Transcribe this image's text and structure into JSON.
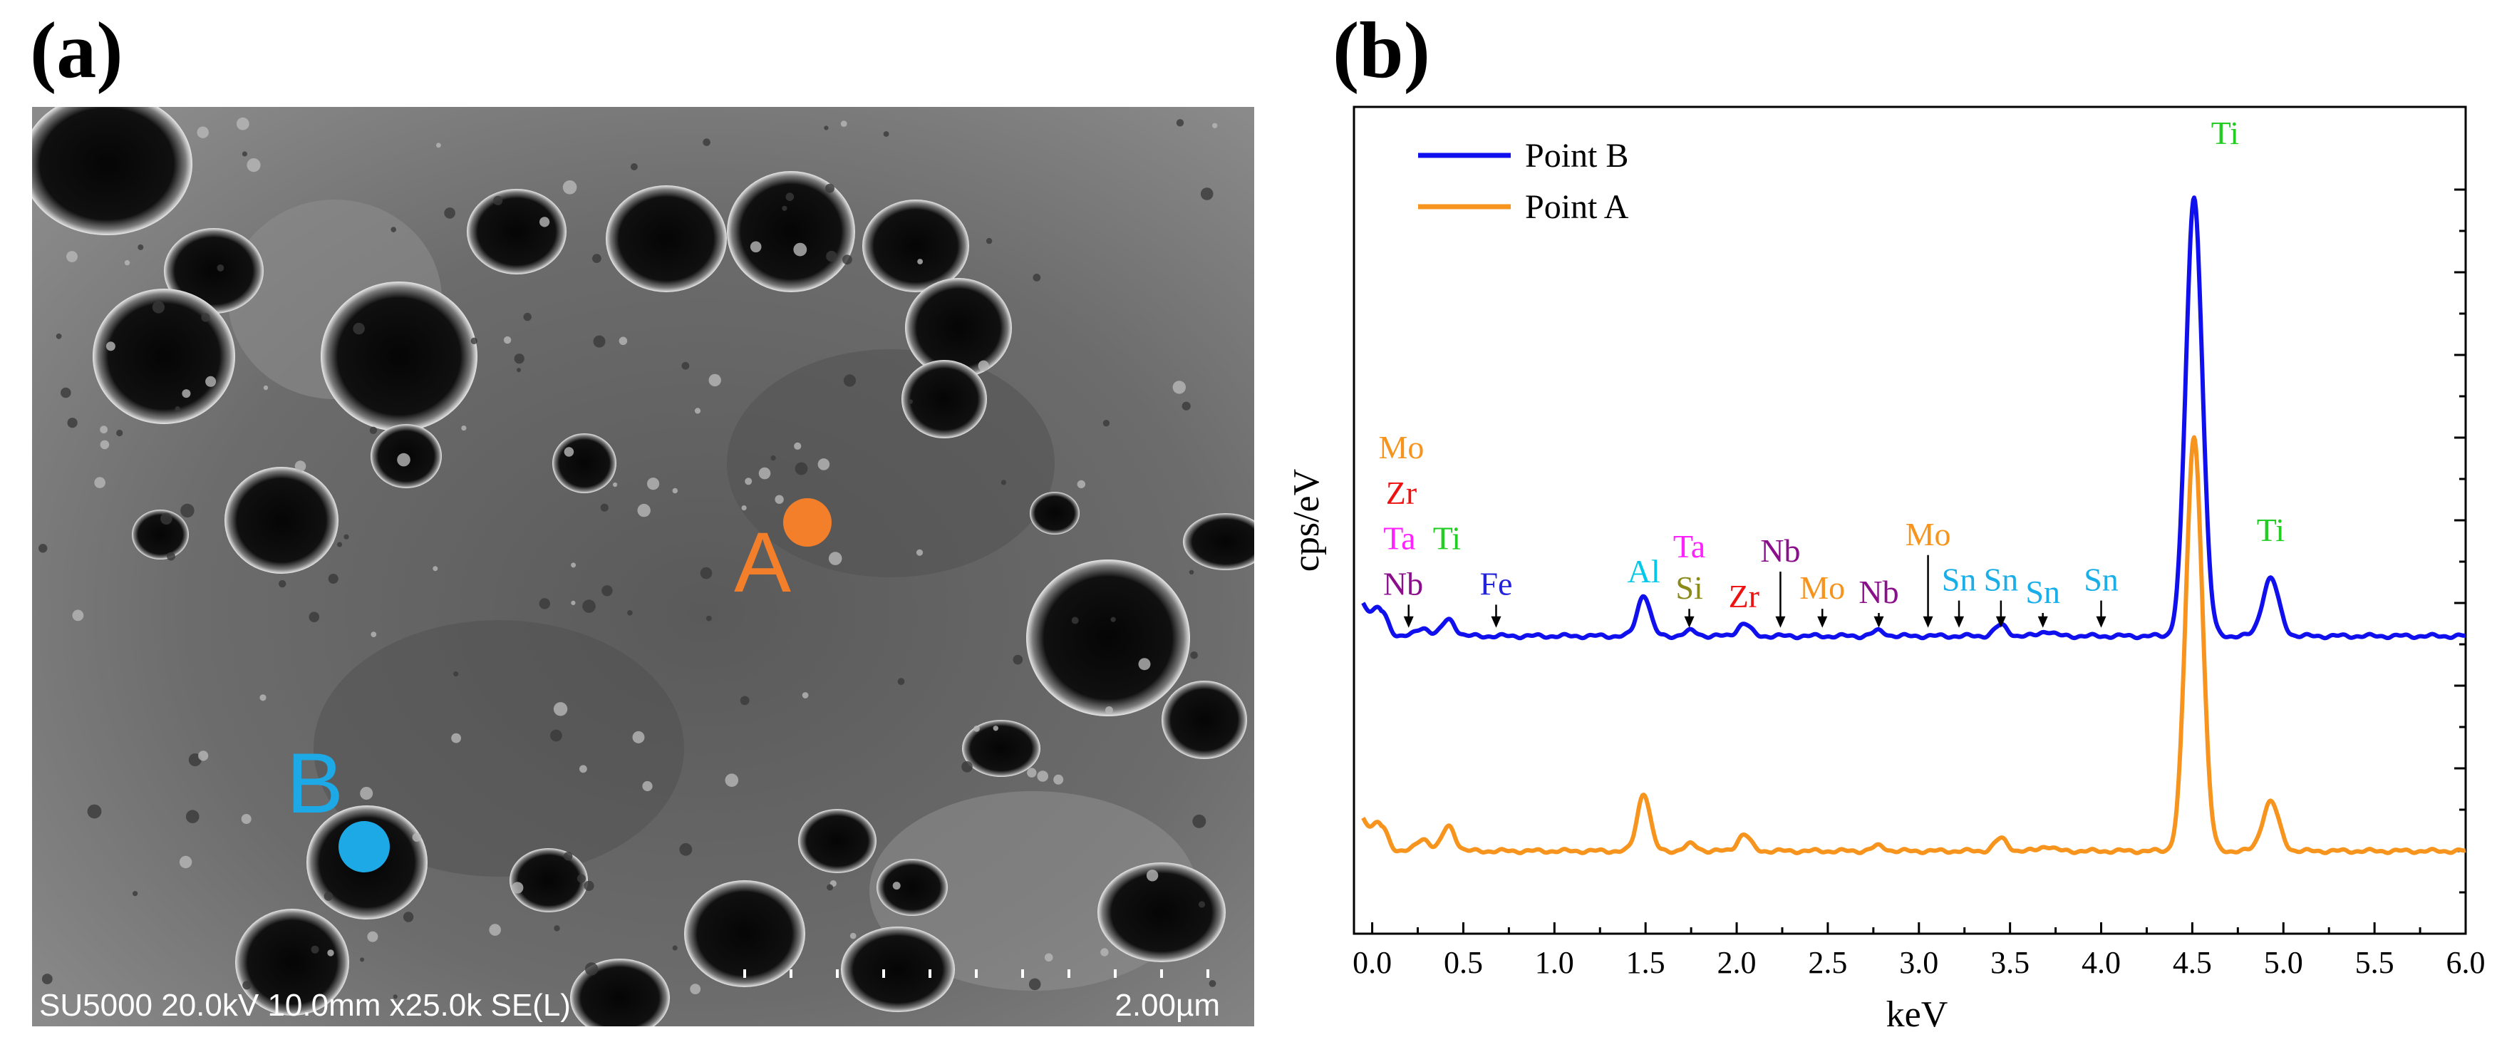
{
  "panel_a": {
    "label": "(a)",
    "image_kind": "SEM micrograph",
    "points": [
      {
        "name": "A",
        "color": "#f47f2a"
      },
      {
        "name": "B",
        "color": "#1da8e6"
      }
    ],
    "footer": {
      "info": "SU5000 20.0kV 10.0mm x25.0k SE(L)",
      "scale": "2.00µm"
    }
  },
  "panel_b": {
    "label": "(b)"
  },
  "chart_data": {
    "type": "line",
    "xlabel": "keV",
    "ylabel": "cps/eV",
    "xlim": [
      -0.1,
      6.0
    ],
    "ylim": [
      0,
      1
    ],
    "x_ticks": [
      "0.0",
      "0.5",
      "1.0",
      "1.5",
      "2.0",
      "2.5",
      "3.0",
      "3.5",
      "4.0",
      "4.5",
      "5.0",
      "5.5",
      "6.0"
    ],
    "legend_position": "top-left",
    "series": [
      {
        "name": "Point B",
        "color": "#1010ee",
        "baseline": 0.36,
        "peaks": [
          [
            0.05,
            0.03
          ],
          [
            0.28,
            0.01
          ],
          [
            0.42,
            0.02
          ],
          [
            1.49,
            0.05
          ],
          [
            1.75,
            0.006
          ],
          [
            2.04,
            0.015
          ],
          [
            2.78,
            0.006
          ],
          [
            3.45,
            0.013
          ],
          [
            3.7,
            0.006
          ],
          [
            4.51,
            0.53
          ],
          [
            4.93,
            0.07
          ]
        ]
      },
      {
        "name": "Point A",
        "color": "#f7941d",
        "baseline": 0.1,
        "peaks": [
          [
            0.05,
            0.03
          ],
          [
            0.28,
            0.015
          ],
          [
            0.42,
            0.03
          ],
          [
            1.49,
            0.07
          ],
          [
            1.75,
            0.008
          ],
          [
            2.04,
            0.02
          ],
          [
            2.78,
            0.006
          ],
          [
            3.45,
            0.015
          ],
          [
            3.7,
            0.006
          ],
          [
            4.51,
            0.5
          ],
          [
            4.93,
            0.06
          ]
        ]
      }
    ],
    "element_colors": {
      "Mo": "#f7941d",
      "Zr": "#ee1111",
      "Ta": "#ff22ff",
      "Ti": "#22cc22",
      "Nb": "#8b0f8b",
      "Fe": "#2323dd",
      "Al": "#00c8e8",
      "Si": "#8a8a1a",
      "Sn": "#1aaee8"
    },
    "annotations": [
      {
        "text": "Mo",
        "element": "Mo",
        "x": 0.16,
        "y": 0.575
      },
      {
        "text": "Zr",
        "element": "Zr",
        "x": 0.16,
        "y": 0.52
      },
      {
        "text": "Ta",
        "element": "Ta",
        "x": 0.15,
        "y": 0.465
      },
      {
        "text": "Ti",
        "element": "Ti",
        "x": 0.41,
        "y": 0.465
      },
      {
        "text": "Nb",
        "element": "Nb",
        "x": 0.17,
        "y": 0.41,
        "arrow_x": 0.2
      },
      {
        "text": "Fe",
        "element": "Fe",
        "x": 0.68,
        "y": 0.41,
        "arrow_x": 0.68
      },
      {
        "text": "Al",
        "element": "Al",
        "x": 1.49,
        "y": 0.425
      },
      {
        "text": "Ta",
        "element": "Ta",
        "x": 1.74,
        "y": 0.455
      },
      {
        "text": "Si",
        "element": "Si",
        "x": 1.74,
        "y": 0.405,
        "arrow_x": 1.74
      },
      {
        "text": "Nb",
        "element": "Nb",
        "x": 2.24,
        "y": 0.45,
        "arrow_x": 2.24
      },
      {
        "text": "Zr",
        "element": "Zr",
        "x": 2.04,
        "y": 0.395
      },
      {
        "text": "Mo",
        "element": "Mo",
        "x": 2.47,
        "y": 0.405,
        "arrow_x": 2.47
      },
      {
        "text": "Nb",
        "element": "Nb",
        "x": 2.78,
        "y": 0.4,
        "arrow_x": 2.78
      },
      {
        "text": "Mo",
        "element": "Mo",
        "x": 3.05,
        "y": 0.47,
        "arrow_x": 3.05
      },
      {
        "text": "Sn",
        "element": "Sn",
        "x": 3.22,
        "y": 0.415,
        "arrow_x": 3.22
      },
      {
        "text": "Sn",
        "element": "Sn",
        "x": 3.45,
        "y": 0.415,
        "arrow_x": 3.45
      },
      {
        "text": "Sn",
        "element": "Sn",
        "x": 3.68,
        "y": 0.4,
        "arrow_x": 3.68
      },
      {
        "text": "Sn",
        "element": "Sn",
        "x": 4.0,
        "y": 0.415,
        "arrow_x": 4.0
      },
      {
        "text": "Ti",
        "element": "Ti",
        "x": 4.68,
        "y": 0.955
      },
      {
        "text": "Ti",
        "element": "Ti",
        "x": 4.93,
        "y": 0.475
      }
    ]
  }
}
